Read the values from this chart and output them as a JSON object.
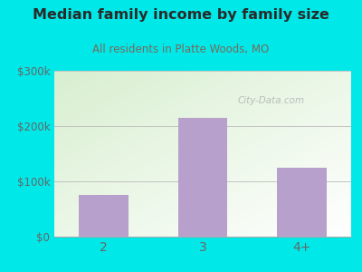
{
  "title": "Median family income by family size",
  "subtitle": "All residents in Platte Woods, MO",
  "categories": [
    "2",
    "3",
    "4+"
  ],
  "values": [
    75000,
    215000,
    125000
  ],
  "bar_color": "#b8a0cc",
  "title_color": "#2a2a2a",
  "subtitle_color": "#7a6a5a",
  "outer_bg": "#00e8e8",
  "ylim": [
    0,
    300000
  ],
  "yticks": [
    0,
    100000,
    200000,
    300000
  ],
  "ytick_labels": [
    "$0",
    "$100k",
    "$200k",
    "$300k"
  ],
  "watermark": "City-Data.com",
  "plot_bg_color1": "#d8efd0",
  "plot_bg_color2": "#ffffff"
}
